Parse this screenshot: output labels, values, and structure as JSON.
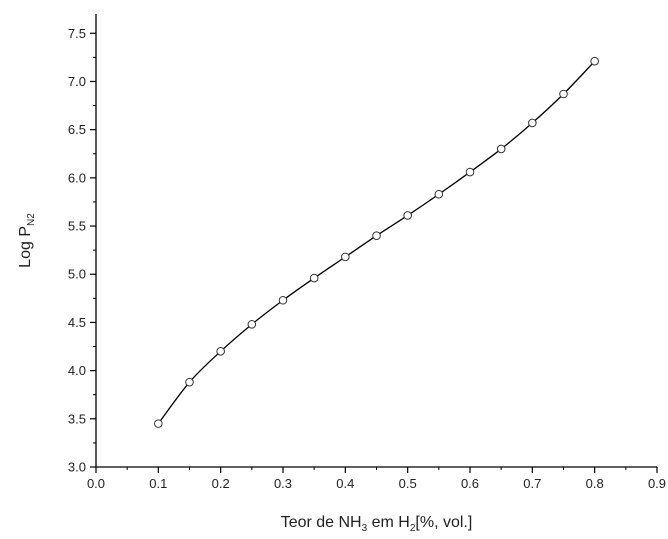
{
  "chart_data": {
    "type": "line",
    "title": "",
    "xlabel": {
      "parts": [
        {
          "text": "Teor de NH",
          "sub": false
        },
        {
          "text": "3",
          "sub": true
        },
        {
          "text": " em H",
          "sub": false
        },
        {
          "text": "2",
          "sub": true
        },
        {
          "text": "[%, vol.]",
          "sub": false
        }
      ]
    },
    "ylabel": {
      "parts": [
        {
          "text": "Log P",
          "sub": false
        },
        {
          "text": "N2",
          "sub": true
        }
      ]
    },
    "xlim": [
      0.0,
      0.9
    ],
    "ylim": [
      3.0,
      7.7
    ],
    "xticks": [
      "0.0",
      "0.1",
      "0.2",
      "0.3",
      "0.4",
      "0.5",
      "0.6",
      "0.7",
      "0.8",
      "0.9"
    ],
    "yticks": [
      "3.0",
      "3.5",
      "4.0",
      "4.5",
      "5.0",
      "5.5",
      "6.0",
      "6.5",
      "7.0",
      "7.5"
    ],
    "grid": false,
    "marker": "open-circle",
    "line_color": "#000000",
    "marker_fill": "#ffffff",
    "series": [
      {
        "x": [
          0.1,
          0.15,
          0.2,
          0.25,
          0.3,
          0.35,
          0.4,
          0.45,
          0.5,
          0.55,
          0.6,
          0.65,
          0.7,
          0.75,
          0.8
        ],
        "y": [
          3.45,
          3.88,
          4.2,
          4.48,
          4.73,
          4.96,
          5.18,
          5.4,
          5.61,
          5.83,
          6.06,
          6.3,
          6.57,
          6.87,
          7.21
        ]
      }
    ]
  }
}
